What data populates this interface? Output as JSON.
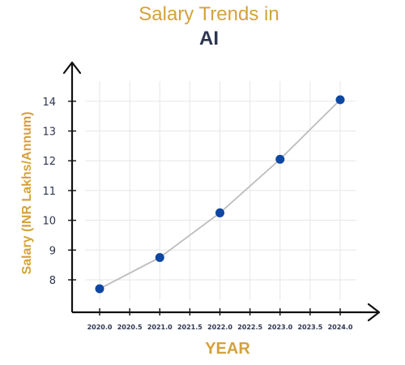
{
  "chart_data": {
    "type": "line",
    "title_line1": "Salary Trends in",
    "title_line2": "AI",
    "xlabel": "YEAR",
    "ylabel": "Salary (INR Lakhs/Annum)",
    "x": [
      2020,
      2021,
      2022,
      2023,
      2024
    ],
    "series": [
      {
        "values": [
          7.7,
          8.75,
          10.25,
          12.05,
          14.05
        ]
      }
    ],
    "xlim": [
      2020,
      2024
    ],
    "ylim": [
      7.7,
      14.05
    ],
    "x_ticks": [
      "2020.0",
      "2020.5",
      "2021.0",
      "2021.5",
      "2022.0",
      "2022.5",
      "2023.0",
      "2023.5",
      "2024.0"
    ],
    "y_ticks": [
      "8",
      "9",
      "10",
      "11",
      "12",
      "13",
      "14"
    ],
    "grid": true,
    "colors": {
      "marker": "#0D47A1",
      "line": "#BDBDBD",
      "grid": "#E6E6E6",
      "axis": "#111111",
      "label": "#D4A23C",
      "tick_text": "#2E3550"
    }
  }
}
